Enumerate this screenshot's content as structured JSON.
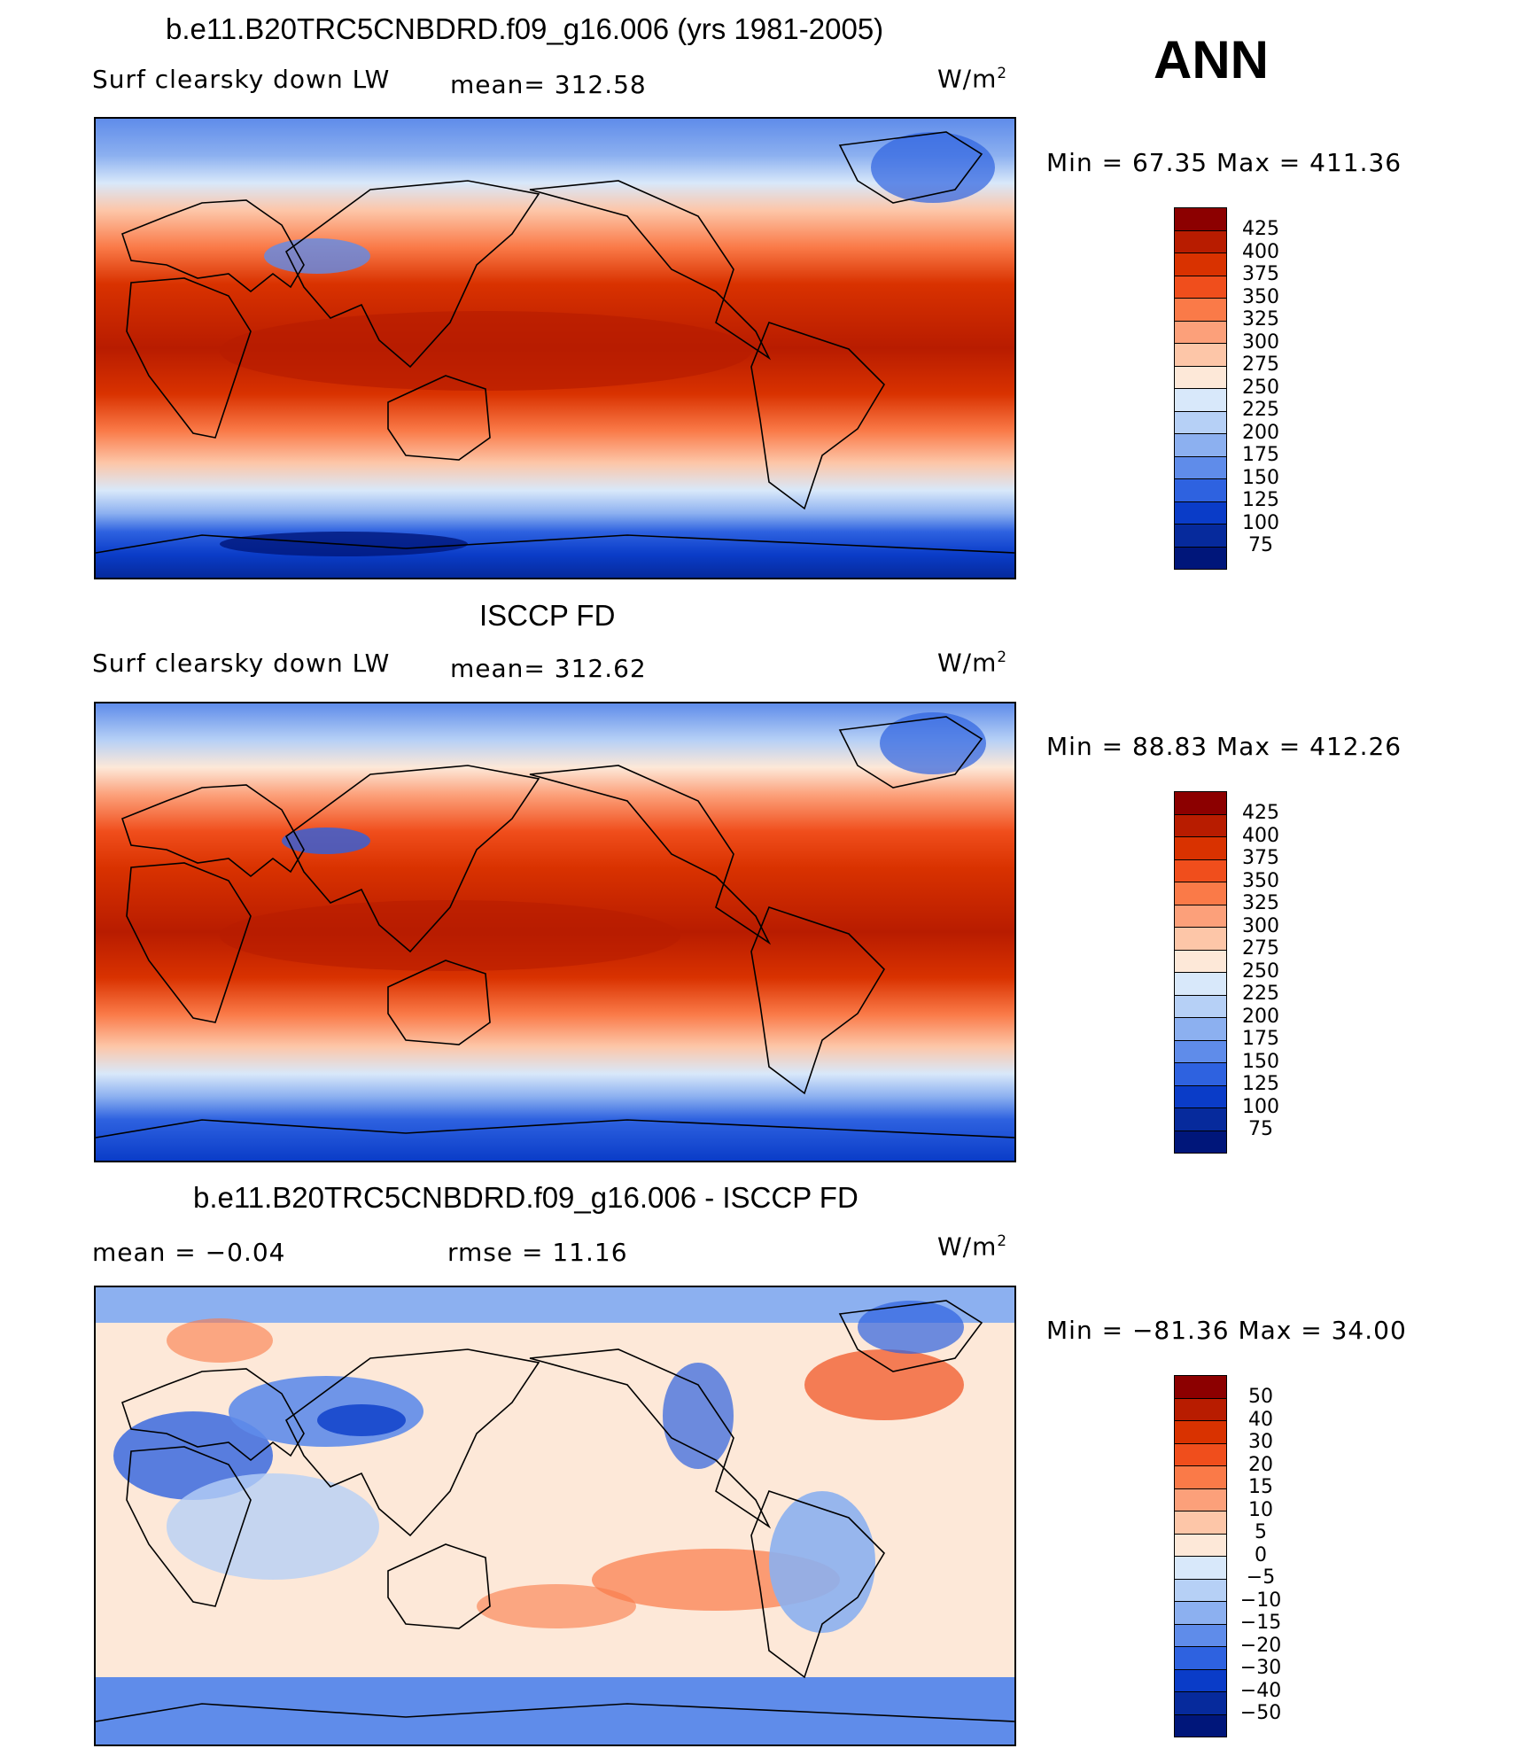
{
  "season": "ANN",
  "panels": [
    {
      "title": "b.e11.B20TRC5CNBDRD.f09_g16.006 (yrs 1981-2005)",
      "left_label": "Surf  clearsky  down  LW",
      "center_label": "mean=  312.58",
      "units": "W/m",
      "units_sup": "2",
      "minmax": "Min  =    67.35  Max  =  411.36",
      "colorbar": {
        "labels": [
          "425",
          "400",
          "375",
          "350",
          "325",
          "300",
          "275",
          "250",
          "225",
          "200",
          "175",
          "150",
          "125",
          "100",
          "75"
        ],
        "colors": [
          "#8c0000",
          "#b81c00",
          "#d93200",
          "#f04e1c",
          "#fa7a48",
          "#fca07a",
          "#fdc6a8",
          "#fde8d8",
          "#d8e8fa",
          "#b6d0f6",
          "#8cb0f0",
          "#5f8cea",
          "#2e62e0",
          "#0a3cc8",
          "#062a9c",
          "#00167a"
        ]
      }
    },
    {
      "title": "ISCCP FD",
      "left_label": "Surf  clearsky  down  LW",
      "center_label": "mean=  312.62",
      "units": "W/m",
      "units_sup": "2",
      "minmax": "Min  =    88.83  Max  =  412.26",
      "colorbar": {
        "labels": [
          "425",
          "400",
          "375",
          "350",
          "325",
          "300",
          "275",
          "250",
          "225",
          "200",
          "175",
          "150",
          "125",
          "100",
          "75"
        ],
        "colors": [
          "#8c0000",
          "#b81c00",
          "#d93200",
          "#f04e1c",
          "#fa7a48",
          "#fca07a",
          "#fdc6a8",
          "#fde8d8",
          "#d8e8fa",
          "#b6d0f6",
          "#8cb0f0",
          "#5f8cea",
          "#2e62e0",
          "#0a3cc8",
          "#062a9c",
          "#00167a"
        ]
      }
    },
    {
      "title": "b.e11.B20TRC5CNBDRD.f09_g16.006 - ISCCP FD",
      "left_label": "mean  =    −0.04",
      "center_label": "rmse  =    11.16",
      "units": "W/m",
      "units_sup": "2",
      "minmax": "Min  =  −81.36  Max  =    34.00",
      "colorbar": {
        "labels": [
          "50",
          "40",
          "30",
          "20",
          "15",
          "10",
          "5",
          "0",
          "−5",
          "−10",
          "−15",
          "−20",
          "−30",
          "−40",
          "−50"
        ],
        "colors": [
          "#8c0000",
          "#b81c00",
          "#d93200",
          "#f04e1c",
          "#fa7a48",
          "#fca07a",
          "#fdc6a8",
          "#fde8d8",
          "#d8e8fa",
          "#b6d0f6",
          "#8cb0f0",
          "#5f8cea",
          "#2e62e0",
          "#0a3cc8",
          "#062a9c",
          "#00167a"
        ]
      }
    }
  ]
}
